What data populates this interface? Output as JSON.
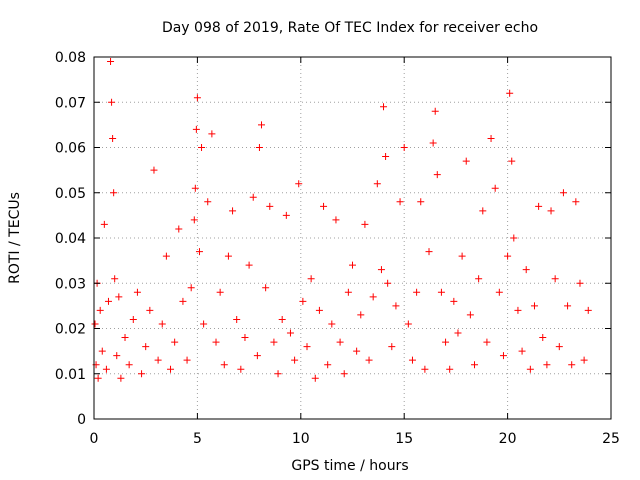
{
  "chart_data": {
    "type": "scatter",
    "title": "Day 098 of 2019, Rate Of TEC Index for receiver echo",
    "xlabel": "GPS time / hours",
    "ylabel": "ROTI / TECUs",
    "xlim": [
      0,
      25
    ],
    "ylim": [
      0,
      0.08
    ],
    "xticks": [
      0,
      5,
      10,
      15,
      20,
      25
    ],
    "yticks": [
      0,
      0.01,
      0.02,
      0.03,
      0.04,
      0.05,
      0.06,
      0.07,
      0.08
    ],
    "xtick_labels": [
      "0",
      "5",
      "10",
      "15",
      "20",
      "25"
    ],
    "ytick_labels": [
      "0",
      "0.01",
      "0.02",
      "0.03",
      "0.04",
      "0.05",
      "0.06",
      "0.07",
      "0.08"
    ],
    "grid": true,
    "marker": "+",
    "color": "#ff0000",
    "series": [
      {
        "name": "ROTI",
        "x": [
          0.05,
          0.1,
          0.15,
          0.2,
          0.3,
          0.4,
          0.5,
          0.6,
          0.7,
          0.8,
          0.85,
          0.9,
          0.95,
          1.0,
          1.1,
          1.2,
          1.3,
          1.5,
          1.7,
          1.9,
          2.1,
          2.3,
          2.5,
          2.7,
          2.9,
          3.1,
          3.3,
          3.5,
          3.7,
          3.9,
          4.1,
          4.3,
          4.5,
          4.7,
          4.85,
          4.9,
          4.95,
          5.0,
          5.1,
          5.2,
          5.3,
          5.5,
          5.7,
          5.9,
          6.1,
          6.3,
          6.5,
          6.7,
          6.9,
          7.1,
          7.3,
          7.5,
          7.7,
          7.9,
          8.0,
          8.1,
          8.3,
          8.5,
          8.7,
          8.9,
          9.1,
          9.3,
          9.5,
          9.7,
          9.9,
          10.1,
          10.3,
          10.5,
          10.7,
          10.9,
          11.1,
          11.3,
          11.5,
          11.7,
          11.9,
          12.1,
          12.3,
          12.5,
          12.7,
          12.9,
          13.1,
          13.3,
          13.5,
          13.7,
          13.9,
          14.0,
          14.1,
          14.2,
          14.4,
          14.6,
          14.8,
          15.0,
          15.2,
          15.4,
          15.6,
          15.8,
          16.0,
          16.2,
          16.4,
          16.5,
          16.6,
          16.8,
          17.0,
          17.2,
          17.4,
          17.6,
          17.8,
          18.0,
          18.2,
          18.4,
          18.6,
          18.8,
          19.0,
          19.2,
          19.4,
          19.6,
          19.8,
          20.0,
          20.1,
          20.2,
          20.3,
          20.5,
          20.7,
          20.9,
          21.1,
          21.3,
          21.5,
          21.7,
          21.9,
          22.1,
          22.3,
          22.5,
          22.7,
          22.9,
          23.1,
          23.3,
          23.5,
          23.7,
          23.9
        ],
        "y": [
          0.021,
          0.012,
          0.03,
          0.009,
          0.024,
          0.015,
          0.043,
          0.011,
          0.026,
          0.079,
          0.07,
          0.062,
          0.05,
          0.031,
          0.014,
          0.027,
          0.009,
          0.018,
          0.012,
          0.022,
          0.028,
          0.01,
          0.016,
          0.024,
          0.055,
          0.013,
          0.021,
          0.036,
          0.011,
          0.017,
          0.042,
          0.026,
          0.013,
          0.029,
          0.044,
          0.051,
          0.064,
          0.071,
          0.037,
          0.06,
          0.021,
          0.048,
          0.063,
          0.017,
          0.028,
          0.012,
          0.036,
          0.046,
          0.022,
          0.011,
          0.018,
          0.034,
          0.049,
          0.014,
          0.06,
          0.065,
          0.029,
          0.047,
          0.017,
          0.01,
          0.022,
          0.045,
          0.019,
          0.013,
          0.052,
          0.026,
          0.016,
          0.031,
          0.009,
          0.024,
          0.047,
          0.012,
          0.021,
          0.044,
          0.017,
          0.01,
          0.028,
          0.034,
          0.015,
          0.023,
          0.043,
          0.013,
          0.027,
          0.052,
          0.033,
          0.069,
          0.058,
          0.03,
          0.016,
          0.025,
          0.048,
          0.06,
          0.021,
          0.013,
          0.028,
          0.048,
          0.011,
          0.037,
          0.061,
          0.068,
          0.054,
          0.028,
          0.017,
          0.011,
          0.026,
          0.019,
          0.036,
          0.057,
          0.023,
          0.012,
          0.031,
          0.046,
          0.017,
          0.062,
          0.051,
          0.028,
          0.014,
          0.036,
          0.072,
          0.057,
          0.04,
          0.024,
          0.015,
          0.033,
          0.011,
          0.025,
          0.047,
          0.018,
          0.012,
          0.046,
          0.031,
          0.016,
          0.05,
          0.025,
          0.012,
          0.048,
          0.03,
          0.013,
          0.024
        ]
      }
    ]
  }
}
